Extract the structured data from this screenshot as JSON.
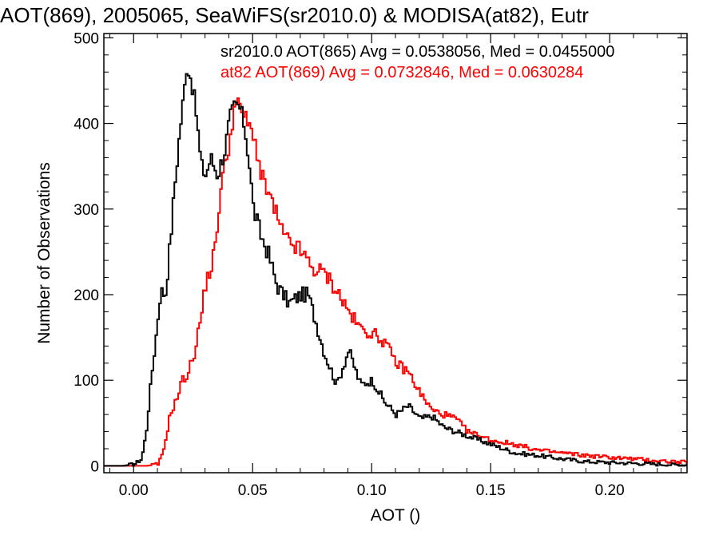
{
  "chart_data": {
    "type": "histogram",
    "title": "AOT(869), 2005065, SeaWiFS(sr2010.0) & MODISA(at82), Eutr",
    "xlabel": "AOT ()",
    "ylabel": "Number of Observations",
    "xlim": [
      -0.0125,
      0.2325
    ],
    "ylim": [
      -8,
      505
    ],
    "xticks": [
      0.0,
      0.05,
      0.1,
      0.15,
      0.2
    ],
    "xtick_labels": [
      "0.00",
      "0.05",
      "0.10",
      "0.15",
      "0.20"
    ],
    "yticks": [
      0,
      100,
      200,
      300,
      400,
      500
    ],
    "ytick_labels": [
      "0",
      "100",
      "200",
      "300",
      "400",
      "500"
    ],
    "legend_position": "top-right",
    "series": [
      {
        "name": "sr2010.0",
        "legend": "sr2010.0 AOT(865) Avg = 0.0538056, Med = 0.0455000",
        "color": "#000000",
        "x": [
          -0.005,
          0.0,
          0.003,
          0.005,
          0.007,
          0.009,
          0.011,
          0.013,
          0.015,
          0.017,
          0.019,
          0.021,
          0.022,
          0.024,
          0.026,
          0.028,
          0.03,
          0.032,
          0.035,
          0.038,
          0.04,
          0.042,
          0.044,
          0.046,
          0.048,
          0.05,
          0.053,
          0.056,
          0.06,
          0.065,
          0.07,
          0.073,
          0.076,
          0.08,
          0.085,
          0.09,
          0.095,
          0.1,
          0.105,
          0.11,
          0.115,
          0.12,
          0.125,
          0.13,
          0.14,
          0.15,
          0.16,
          0.17,
          0.18,
          0.19,
          0.2,
          0.21,
          0.22,
          0.232
        ],
        "y": [
          0,
          2,
          8,
          40,
          100,
          150,
          205,
          200,
          260,
          330,
          390,
          440,
          470,
          450,
          410,
          350,
          340,
          360,
          340,
          370,
          405,
          420,
          420,
          400,
          360,
          300,
          270,
          250,
          210,
          190,
          200,
          200,
          170,
          130,
          95,
          135,
          95,
          100,
          75,
          60,
          70,
          55,
          58,
          45,
          35,
          25,
          15,
          12,
          8,
          5,
          4,
          3,
          2,
          1
        ]
      },
      {
        "name": "at82",
        "legend": "at82 AOT(869) Avg = 0.0732846, Med = 0.0630284",
        "color": "#ff0000",
        "x": [
          -0.005,
          0.005,
          0.01,
          0.012,
          0.015,
          0.018,
          0.02,
          0.022,
          0.025,
          0.028,
          0.03,
          0.032,
          0.034,
          0.036,
          0.038,
          0.04,
          0.042,
          0.044,
          0.046,
          0.048,
          0.05,
          0.053,
          0.056,
          0.06,
          0.063,
          0.066,
          0.07,
          0.075,
          0.08,
          0.085,
          0.09,
          0.095,
          0.1,
          0.105,
          0.11,
          0.115,
          0.12,
          0.125,
          0.13,
          0.135,
          0.14,
          0.15,
          0.16,
          0.17,
          0.18,
          0.19,
          0.2,
          0.21,
          0.22,
          0.232
        ],
        "y": [
          0,
          0,
          2,
          15,
          60,
          80,
          100,
          105,
          130,
          175,
          215,
          230,
          255,
          320,
          350,
          380,
          420,
          420,
          410,
          395,
          390,
          340,
          320,
          290,
          265,
          260,
          250,
          230,
          225,
          205,
          180,
          160,
          155,
          145,
          120,
          110,
          85,
          65,
          60,
          55,
          40,
          30,
          25,
          18,
          15,
          12,
          10,
          8,
          6,
          4
        ]
      }
    ]
  }
}
